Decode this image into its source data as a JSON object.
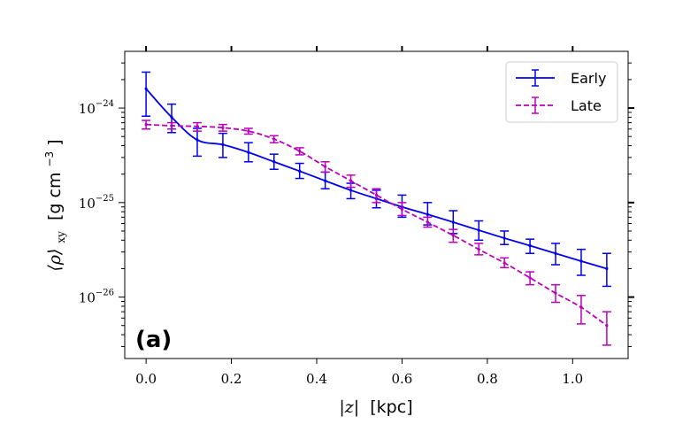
{
  "chart_data": {
    "type": "line",
    "panel_label": "(a)",
    "xlabel_var": "|z|",
    "xlabel_unit": "[kpc]",
    "ylabel_var": "⟨ρ⟩",
    "ylabel_sub": "xy",
    "ylabel_unit": "[g cm",
    "ylabel_unit_exp": "−3",
    "ylabel_unit_close": "]",
    "xlim": [
      -0.05,
      1.13
    ],
    "ylim_log10": [
      -26.65,
      -23.4
    ],
    "x_ticks": [
      0.0,
      0.2,
      0.4,
      0.6,
      0.8,
      1.0
    ],
    "x_tick_labels": [
      "0.0",
      "0.2",
      "0.4",
      "0.6",
      "0.8",
      "1.0"
    ],
    "y_ticks_log10": [
      -24,
      -25,
      -26
    ],
    "y_tick_base": "10",
    "y_tick_exps": [
      "−24",
      "−25",
      "−26"
    ],
    "legend_position": "top-right",
    "series": [
      {
        "name": "Early",
        "color": "#0000ee",
        "dash": "solid",
        "x": [
          0.0,
          0.06,
          0.12,
          0.18,
          0.24,
          0.3,
          0.36,
          0.42,
          0.48,
          0.54,
          0.6,
          0.66,
          0.72,
          0.78,
          0.84,
          0.9,
          0.96,
          1.02,
          1.08
        ],
        "y": [
          1.6e-24,
          8e-25,
          4.6e-25,
          4.1e-25,
          3.4e-25,
          2.7e-25,
          2.15e-25,
          1.7e-25,
          1.35e-25,
          1.1e-25,
          9e-26,
          7.5e-26,
          6.2e-26,
          5.1e-26,
          4.2e-26,
          3.5e-26,
          2.9e-26,
          2.4e-26,
          2e-26
        ],
        "y_low": [
          8.2e-25,
          5.5e-25,
          3.1e-25,
          3e-25,
          2.7e-25,
          2.25e-25,
          1.8e-25,
          1.4e-25,
          1.1e-25,
          8.8e-26,
          7e-26,
          5.8e-26,
          4.7e-26,
          4e-26,
          3.6e-26,
          2.9e-26,
          2.2e-26,
          1.7e-26,
          1.3e-26
        ],
        "y_high": [
          2.4e-24,
          1.1e-24,
          6.1e-25,
          5.4e-25,
          4.3e-25,
          3.25e-25,
          2.6e-25,
          2.1e-25,
          1.6e-25,
          1.35e-25,
          1.2e-25,
          1e-25,
          8.2e-26,
          6.4e-26,
          5e-26,
          4.1e-26,
          3.7e-26,
          3.2e-26,
          2.9e-26
        ]
      },
      {
        "name": "Late",
        "color": "#bb00bb",
        "dash": "dashed",
        "x": [
          0.0,
          0.06,
          0.12,
          0.18,
          0.24,
          0.3,
          0.36,
          0.42,
          0.48,
          0.54,
          0.6,
          0.66,
          0.72,
          0.78,
          0.84,
          0.9,
          0.96,
          1.02,
          1.08
        ],
        "y": [
          6.7e-25,
          6.5e-25,
          6.4e-25,
          6.2e-25,
          5.7e-25,
          4.7e-25,
          3.5e-25,
          2.4e-25,
          1.7e-25,
          1.2e-25,
          8.5e-26,
          6.2e-26,
          4.5e-26,
          3.2e-26,
          2.3e-26,
          1.6e-26,
          1.1e-26,
          7.8e-27,
          5e-27
        ],
        "y_low": [
          6e-25,
          6e-25,
          5.7e-25,
          5.7e-25,
          5.3e-25,
          4.3e-25,
          3.2e-25,
          2.1e-25,
          1.45e-25,
          1e-25,
          7.3e-26,
          5.5e-26,
          3.8e-26,
          2.8e-26,
          2.05e-26,
          1.35e-26,
          8.8e-27,
          5.2e-27,
          3.1e-27
        ],
        "y_high": [
          7.4e-25,
          7e-25,
          7e-25,
          6.7e-25,
          6.1e-25,
          5.1e-25,
          3.8e-25,
          2.7e-25,
          1.95e-25,
          1.4e-25,
          1e-25,
          7e-26,
          5.2e-26,
          3.7e-26,
          2.6e-26,
          1.85e-26,
          1.35e-26,
          1.04e-26,
          7e-27
        ]
      }
    ]
  }
}
